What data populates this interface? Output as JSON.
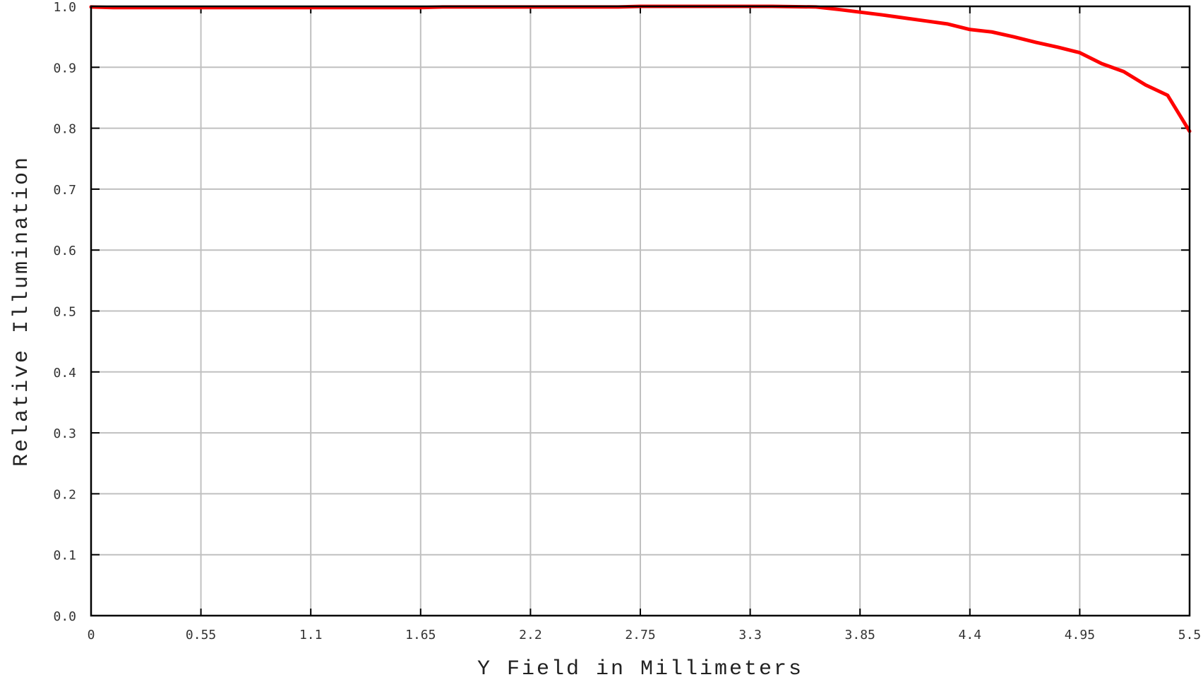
{
  "chart_data": {
    "type": "line",
    "xlabel": "Y Field in Millimeters",
    "ylabel": "Relative Illumination",
    "xlim": [
      0,
      5.5
    ],
    "ylim": [
      0,
      1.0
    ],
    "x_ticks": [
      0,
      0.55,
      1.1,
      1.65,
      2.2,
      2.75,
      3.3,
      3.85,
      4.4,
      4.95,
      5.5
    ],
    "x_tick_labels": [
      "0",
      "0.55",
      "1.1",
      "1.65",
      "2.2",
      "2.75",
      "3.3",
      "3.85",
      "4.4",
      "4.95",
      "5.5"
    ],
    "y_ticks": [
      0,
      0.1,
      0.2,
      0.3,
      0.4,
      0.5,
      0.6,
      0.7,
      0.8,
      0.9,
      1.0
    ],
    "y_tick_labels": [
      "0.0",
      "0.1",
      "0.2",
      "0.3",
      "0.4",
      "0.5",
      "0.6",
      "0.7",
      "0.8",
      "0.9",
      "1.0"
    ],
    "grid": true,
    "colors": {
      "series": "#ff0000",
      "grid": "#c0c0c0",
      "frame": "#000000"
    },
    "series": [
      {
        "x": [
          0,
          0.11,
          1.65,
          1.76,
          2.64,
          2.75,
          3.41,
          3.63,
          3.74,
          3.96,
          4.18,
          4.29,
          4.4,
          4.51,
          4.62,
          4.73,
          4.84,
          4.95,
          5.06,
          5.17,
          5.28,
          5.39,
          5.5
        ],
        "y": [
          0.999,
          0.998,
          0.998,
          0.999,
          0.999,
          1.0,
          1.0,
          0.999,
          0.995,
          0.986,
          0.976,
          0.971,
          0.962,
          0.958,
          0.95,
          0.941,
          0.933,
          0.924,
          0.906,
          0.893,
          0.871,
          0.854,
          0.795
        ]
      }
    ]
  }
}
